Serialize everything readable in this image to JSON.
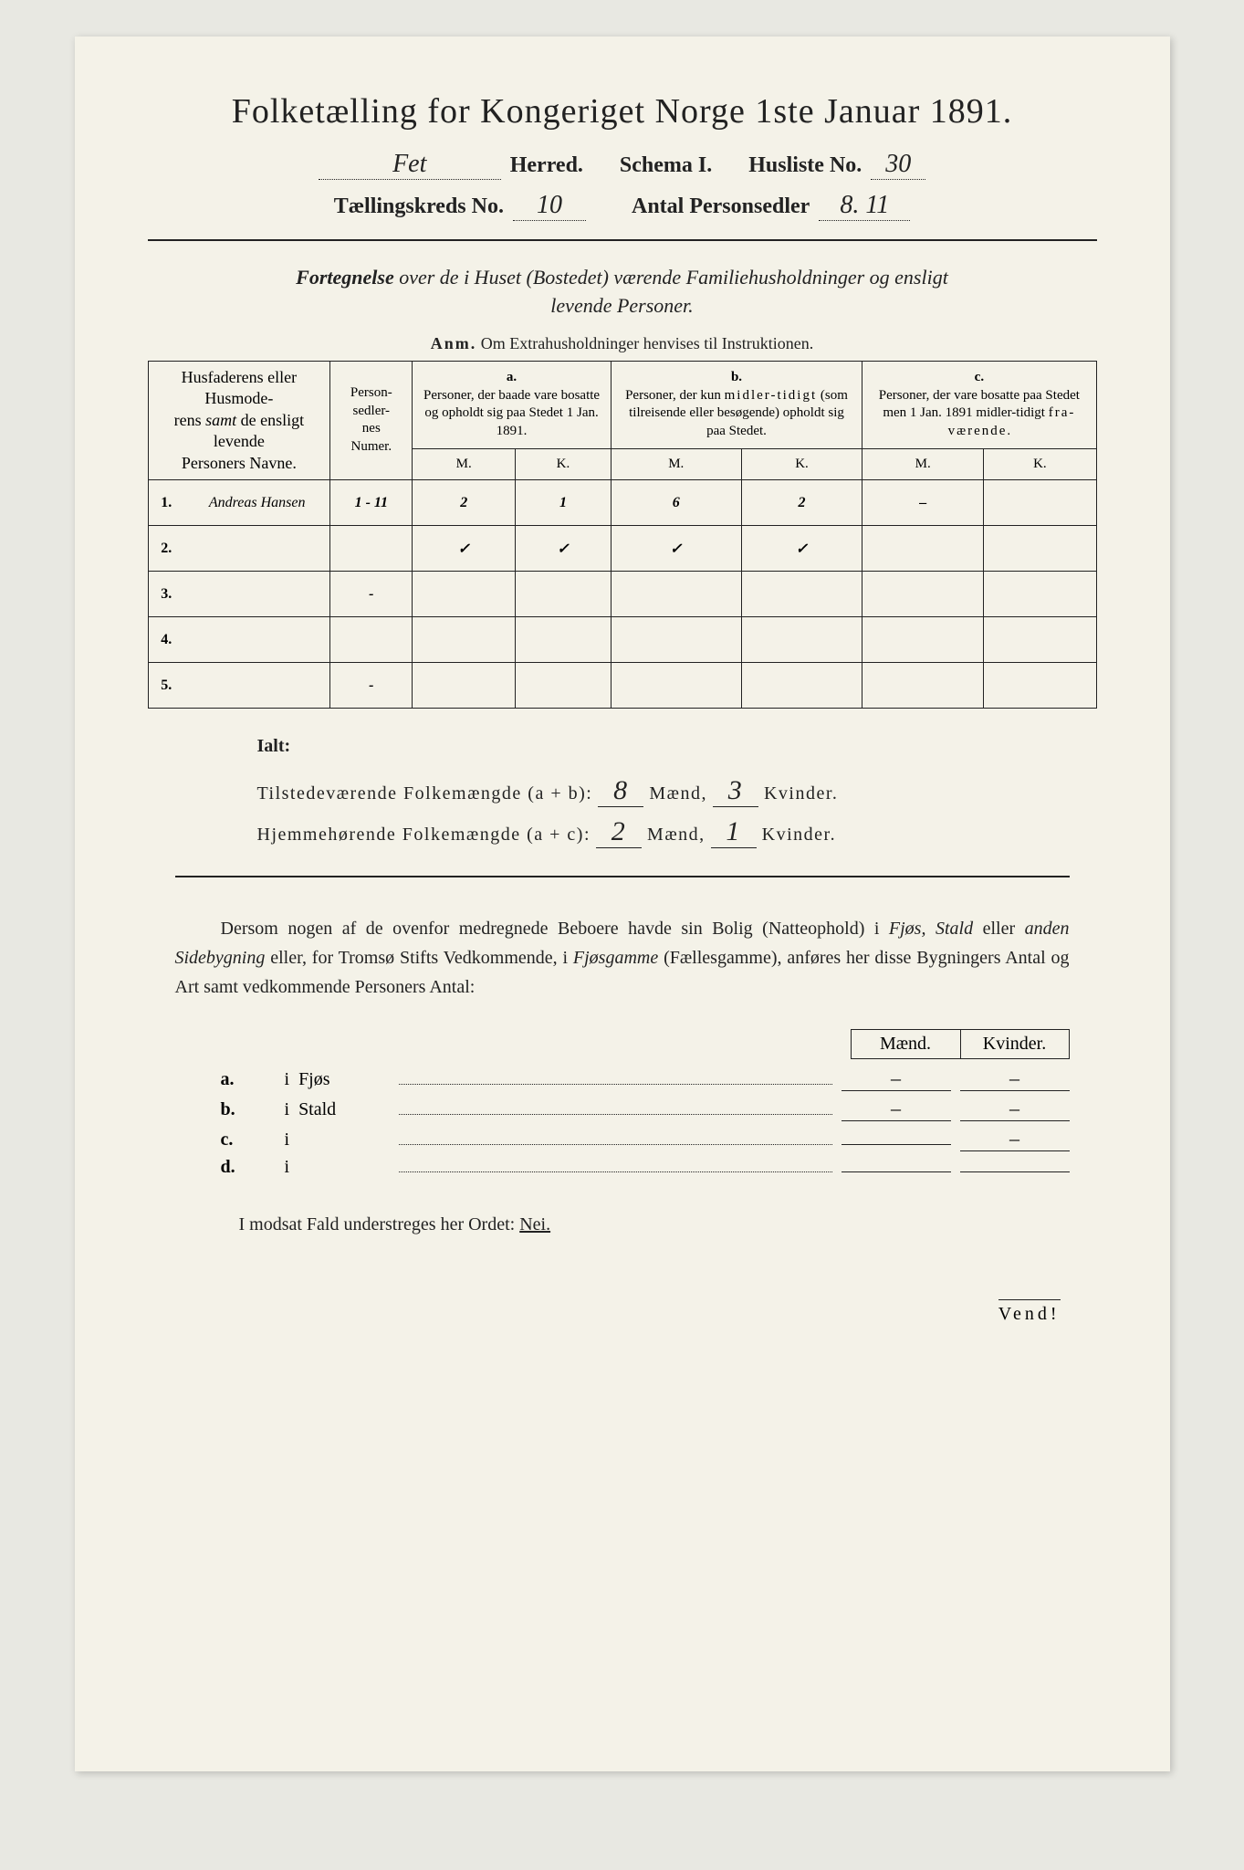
{
  "title": "Folketælling for Kongeriget Norge 1ste Januar 1891.",
  "header": {
    "herred_value": "Fet",
    "herred_label": "Herred.",
    "schema_label": "Schema I.",
    "husliste_label": "Husliste No.",
    "husliste_value": "30",
    "kreds_label": "Tællingskreds No.",
    "kreds_value": "10",
    "antal_label": "Antal Personsedler",
    "antal_value": "8. 11"
  },
  "subtitle": "Fortegnelse over de i Huset (Bostedet) værende Familiehusholdninger og ensligt levende Personer.",
  "anm_label": "Anm.",
  "anm_text": "Om Extrahusholdninger henvises til Instruktionen.",
  "table": {
    "col1_header": "Husfaderens eller Husmoderens samt de ensligt levende Personers Navne.",
    "col2_header": "Personsedlernes Numer.",
    "col_a_label": "a.",
    "col_a_text": "Personer, der baade vare bosatte og opholdt sig paa Stedet 1 Jan. 1891.",
    "col_b_label": "b.",
    "col_b_text": "Personer, der kun midlertidigt (som tilreisende eller besøgende) opholdt sig paa Stedet.",
    "col_c_label": "c.",
    "col_c_text": "Personer, der vare bosatte paa Stedet men 1 Jan. 1891 midlertidigt fraværende.",
    "m_label": "M.",
    "k_label": "K.",
    "rows": [
      {
        "num": "1.",
        "name": "Andreas Hansen",
        "sedler": "1 - 11",
        "a_m": "2",
        "a_k": "1",
        "b_m": "6",
        "b_k": "2",
        "c_m": "–",
        "c_k": ""
      },
      {
        "num": "2.",
        "name": "",
        "sedler": "",
        "a_m": "✓",
        "a_k": "✓",
        "b_m": "✓",
        "b_k": "✓",
        "c_m": "",
        "c_k": ""
      },
      {
        "num": "3.",
        "name": "",
        "sedler": "-",
        "a_m": "",
        "a_k": "",
        "b_m": "",
        "b_k": "",
        "c_m": "",
        "c_k": ""
      },
      {
        "num": "4.",
        "name": "",
        "sedler": "",
        "a_m": "",
        "a_k": "",
        "b_m": "",
        "b_k": "",
        "c_m": "",
        "c_k": ""
      },
      {
        "num": "5.",
        "name": "",
        "sedler": "-",
        "a_m": "",
        "a_k": "",
        "b_m": "",
        "b_k": "",
        "c_m": "",
        "c_k": ""
      }
    ]
  },
  "ialt": {
    "label": "Ialt:",
    "line1_label": "Tilstedeværende Folkemængde (a + b):",
    "line1_m": "8",
    "line1_k": "3",
    "line2_label": "Hjemmehørende Folkemængde (a + c):",
    "line2_m": "2",
    "line2_k": "1",
    "maend": "Mænd,",
    "kvinder": "Kvinder."
  },
  "paragraph": "Dersom nogen af de ovenfor medregnede Beboere havde sin Bolig (Natteophold) i Fjøs, Stald eller anden Sidebygning eller, for Tromsø Stifts Vedkommende, i Fjøsgamme (Fællesgamme), anføres her disse Bygningers Antal og Art samt vedkommende Personers Antal:",
  "buildings": {
    "maend": "Mænd.",
    "kvinder": "Kvinder.",
    "rows": [
      {
        "label": "a.",
        "i": "i",
        "type": "Fjøs",
        "m": "–",
        "k": "–"
      },
      {
        "label": "b.",
        "i": "i",
        "type": "Stald",
        "m": "–",
        "k": "–"
      },
      {
        "label": "c.",
        "i": "i",
        "type": "",
        "m": "",
        "k": "–"
      },
      {
        "label": "d.",
        "i": "i",
        "type": "",
        "m": "",
        "k": ""
      }
    ]
  },
  "footer": "I modsat Fald understreges her Ordet:",
  "footer_nei": "Nei.",
  "vend": "Vend!"
}
